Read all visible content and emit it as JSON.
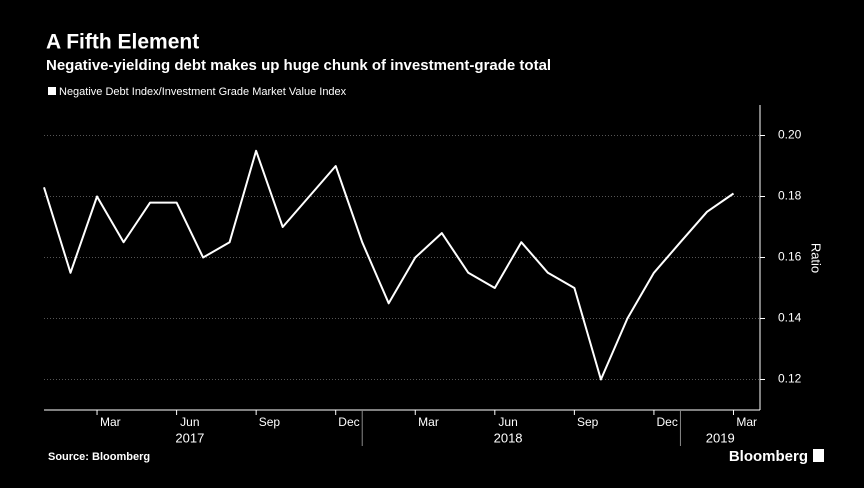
{
  "chart_data": {
    "type": "line",
    "title": "A Fifth Element",
    "subtitle": "Negative-yielding debt makes up huge chunk of investment-grade total",
    "y_axis_label": "Ratio",
    "source": "Source: Bloomberg",
    "logo": "Bloomberg",
    "x": [
      "2017-01",
      "2017-02",
      "2017-03",
      "2017-04",
      "2017-05",
      "2017-06",
      "2017-07",
      "2017-08",
      "2017-09",
      "2017-10",
      "2017-11",
      "2017-12",
      "2018-01",
      "2018-02",
      "2018-03",
      "2018-04",
      "2018-05",
      "2018-06",
      "2018-07",
      "2018-08",
      "2018-09",
      "2018-10",
      "2018-11",
      "2018-12",
      "2019-01",
      "2019-02",
      "2019-03"
    ],
    "series": [
      {
        "name": "Negative Debt Index/Investment Grade Market Value Index",
        "color": "#ffffff",
        "values": [
          0.183,
          0.155,
          0.18,
          0.165,
          0.178,
          0.178,
          0.16,
          0.165,
          0.195,
          0.17,
          0.18,
          0.19,
          0.165,
          0.145,
          0.16,
          0.168,
          0.155,
          0.15,
          0.165,
          0.155,
          0.15,
          0.12,
          0.14,
          0.155,
          0.165,
          0.175,
          0.181
        ]
      }
    ],
    "xlim": [
      "2017-01",
      "2019-04"
    ],
    "xticks": [
      {
        "value": "2017-03",
        "label": "Mar"
      },
      {
        "value": "2017-06",
        "label": "Jun"
      },
      {
        "value": "2017-09",
        "label": "Sep"
      },
      {
        "value": "2017-12",
        "label": "Dec"
      },
      {
        "value": "2018-03",
        "label": "Mar"
      },
      {
        "value": "2018-06",
        "label": "Jun"
      },
      {
        "value": "2018-09",
        "label": "Sep"
      },
      {
        "value": "2018-12",
        "label": "Dec"
      },
      {
        "value": "2019-03",
        "label": "Mar"
      }
    ],
    "year_labels": [
      {
        "value": "2017-06",
        "label": "2017"
      },
      {
        "value": "2018-06",
        "label": "2018"
      },
      {
        "value": "2019-02",
        "label": "2019"
      }
    ],
    "ylim": [
      0.11,
      0.21
    ],
    "yticks": [
      {
        "value": 0.12,
        "label": "0.12"
      },
      {
        "value": 0.14,
        "label": "0.14"
      },
      {
        "value": 0.16,
        "label": "0.16"
      },
      {
        "value": 0.18,
        "label": "0.18"
      },
      {
        "value": 0.2,
        "label": "0.20"
      }
    ],
    "grid": true
  }
}
